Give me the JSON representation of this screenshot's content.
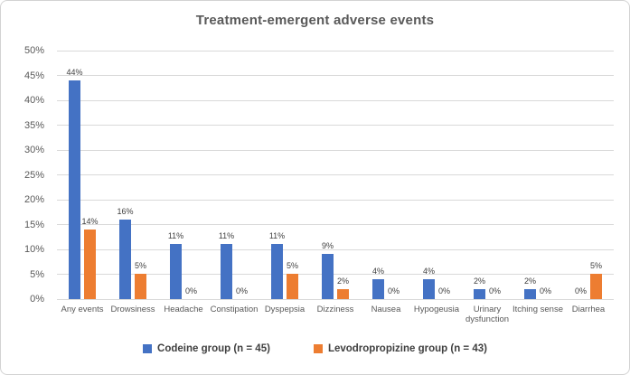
{
  "chart_data": {
    "type": "bar",
    "title": "Treatment-emergent adverse events",
    "categories": [
      "Any events",
      "Drowsiness",
      "Headache",
      "Constipation",
      "Dyspepsia",
      "Dizziness",
      "Nausea",
      "Hypogeusia",
      "Urinary dysfunction",
      "Itching sense",
      "Diarrhea"
    ],
    "series": [
      {
        "name": "Codeine group (n = 45)",
        "color": "#4472C4",
        "values": [
          44,
          16,
          11,
          11,
          11,
          9,
          4,
          4,
          2,
          2,
          0
        ]
      },
      {
        "name": "Levodropropizine group (n = 43)",
        "color": "#ED7D31",
        "values": [
          14,
          5,
          0,
          0,
          5,
          2,
          0,
          0,
          0,
          0,
          5
        ]
      }
    ],
    "ylim": [
      0,
      50
    ],
    "ytick_step": 5,
    "ytick_suffix": "%",
    "data_label_suffix": "%",
    "grid": true,
    "legend_position": "bottom",
    "colors": {
      "gridline": "#d9d9d9",
      "axis_text": "#595959",
      "title_text": "#595959",
      "data_label_text": "#404040"
    }
  }
}
